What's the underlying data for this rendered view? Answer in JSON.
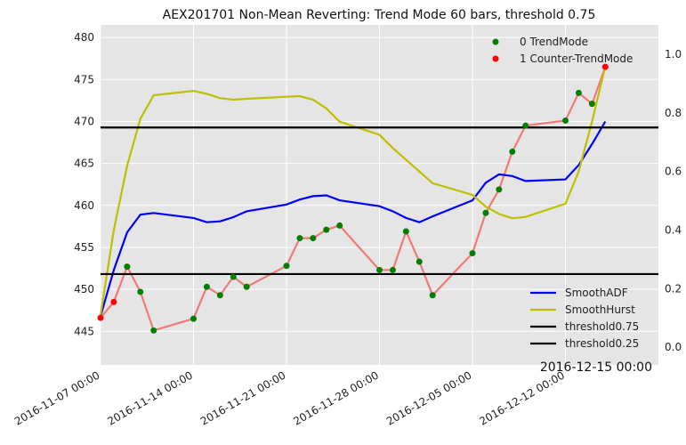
{
  "chart_data": {
    "type": "line",
    "title": "AEX201701 Non-Mean Reverting: Trend Mode 60 bars, threshold 0.75",
    "corner_label": "2016-12-15 00:00",
    "xlabel": "",
    "ylabel": "",
    "y_left_lim": [
      441,
      481.5
    ],
    "y_left_ticks": [
      "445",
      "450",
      "455",
      "460",
      "465",
      "470",
      "475",
      "480"
    ],
    "y_right_lim": [
      -0.06,
      1.1
    ],
    "y_right_ticks": [
      "0.0",
      "0.2",
      "0.4",
      "0.6",
      "0.8",
      "1.0"
    ],
    "x_lim": [
      "2016-11-07",
      "2016-12-19"
    ],
    "x_ticks": [
      "2016-11-07 00:00",
      "2016-11-14 00:00",
      "2016-11-21 00:00",
      "2016-11-28 00:00",
      "2016-12-05 00:00",
      "2016-12-12 00:00"
    ],
    "grid": true,
    "price": {
      "color": "#f07a78",
      "points": [
        [
          "2016-11-07",
          446.6
        ],
        [
          "2016-11-08",
          448.5
        ],
        [
          "2016-11-09",
          452.7
        ],
        [
          "2016-11-10",
          449.7
        ],
        [
          "2016-11-11",
          445.1
        ],
        [
          "2016-11-14",
          446.5
        ],
        [
          "2016-11-15",
          450.3
        ],
        [
          "2016-11-16",
          449.3
        ],
        [
          "2016-11-17",
          451.5
        ],
        [
          "2016-11-18",
          450.3
        ],
        [
          "2016-11-21",
          452.8
        ],
        [
          "2016-11-22",
          456.1
        ],
        [
          "2016-11-23",
          456.1
        ],
        [
          "2016-11-24",
          457.1
        ],
        [
          "2016-11-25",
          457.6
        ],
        [
          "2016-11-28",
          452.3
        ],
        [
          "2016-11-29",
          452.3
        ],
        [
          "2016-11-30",
          456.9
        ],
        [
          "2016-12-01",
          453.3
        ],
        [
          "2016-12-02",
          449.3
        ],
        [
          "2016-12-05",
          454.3
        ],
        [
          "2016-12-06",
          459.1
        ],
        [
          "2016-12-07",
          461.9
        ],
        [
          "2016-12-08",
          466.4
        ],
        [
          "2016-12-09",
          469.5
        ],
        [
          "2016-12-12",
          470.1
        ],
        [
          "2016-12-13",
          473.4
        ],
        [
          "2016-12-14",
          472.1
        ],
        [
          "2016-12-15",
          476.5
        ]
      ],
      "modes": [
        1,
        1,
        0,
        0,
        0,
        0,
        0,
        0,
        0,
        0,
        0,
        0,
        0,
        0,
        0,
        0,
        0,
        0,
        0,
        0,
        0,
        0,
        0,
        0,
        0,
        0,
        0,
        0,
        1
      ]
    },
    "series": [
      {
        "name": "SmoothADF",
        "color": "#0000ff",
        "axis": "left",
        "points": [
          [
            "2016-11-07",
            446.8
          ],
          [
            "2016-11-08",
            452.3
          ],
          [
            "2016-11-09",
            456.8
          ],
          [
            "2016-11-10",
            458.9
          ],
          [
            "2016-11-11",
            459.1
          ],
          [
            "2016-11-14",
            458.5
          ],
          [
            "2016-11-15",
            458.0
          ],
          [
            "2016-11-16",
            458.1
          ],
          [
            "2016-11-17",
            458.6
          ],
          [
            "2016-11-18",
            459.3
          ],
          [
            "2016-11-21",
            460.1
          ],
          [
            "2016-11-22",
            460.7
          ],
          [
            "2016-11-23",
            461.1
          ],
          [
            "2016-11-24",
            461.2
          ],
          [
            "2016-11-25",
            460.6
          ],
          [
            "2016-11-28",
            459.9
          ],
          [
            "2016-11-29",
            459.3
          ],
          [
            "2016-11-30",
            458.5
          ],
          [
            "2016-12-01",
            458.0
          ],
          [
            "2016-12-02",
            458.7
          ],
          [
            "2016-12-05",
            460.6
          ],
          [
            "2016-12-06",
            462.7
          ],
          [
            "2016-12-07",
            463.7
          ],
          [
            "2016-12-08",
            463.5
          ],
          [
            "2016-12-09",
            462.9
          ],
          [
            "2016-12-12",
            463.1
          ],
          [
            "2016-12-13",
            464.8
          ],
          [
            "2016-12-14",
            467.3
          ],
          [
            "2016-12-15",
            470.0
          ]
        ]
      },
      {
        "name": "SmoothHurst",
        "color": "#bfbf00",
        "axis": "right",
        "points": [
          [
            "2016-11-07",
            0.11
          ],
          [
            "2016-11-08",
            0.4
          ],
          [
            "2016-11-09",
            0.62
          ],
          [
            "2016-11-10",
            0.78
          ],
          [
            "2016-11-11",
            0.86
          ],
          [
            "2016-11-14",
            0.875
          ],
          [
            "2016-11-15",
            0.865
          ],
          [
            "2016-11-16",
            0.85
          ],
          [
            "2016-11-17",
            0.845
          ],
          [
            "2016-11-18",
            0.848
          ],
          [
            "2016-11-21",
            0.855
          ],
          [
            "2016-11-22",
            0.857
          ],
          [
            "2016-11-23",
            0.845
          ],
          [
            "2016-11-24",
            0.815
          ],
          [
            "2016-11-25",
            0.77
          ],
          [
            "2016-11-28",
            0.725
          ],
          [
            "2016-11-29",
            0.68
          ],
          [
            "2016-11-30",
            0.64
          ],
          [
            "2016-12-01",
            0.6
          ],
          [
            "2016-12-02",
            0.56
          ],
          [
            "2016-12-05",
            0.52
          ],
          [
            "2016-12-06",
            0.48
          ],
          [
            "2016-12-07",
            0.455
          ],
          [
            "2016-12-08",
            0.44
          ],
          [
            "2016-12-09",
            0.445
          ],
          [
            "2016-12-12",
            0.49
          ],
          [
            "2016-12-13",
            0.6
          ],
          [
            "2016-12-14",
            0.77
          ],
          [
            "2016-12-15",
            0.96
          ]
        ]
      },
      {
        "name": "threshold0.75",
        "color": "#000000",
        "axis": "right",
        "value": 0.75
      },
      {
        "name": "threshold0.25",
        "color": "#000000",
        "axis": "right",
        "value": 0.25
      }
    ],
    "legend_top": [
      {
        "name": "0 TrendMode",
        "color": "#007f00"
      },
      {
        "name": "1 Counter-TrendMode",
        "color": "#ff0000"
      }
    ],
    "legend_top_placement": "top-right",
    "legend_bottom_placement": "lower-right"
  }
}
